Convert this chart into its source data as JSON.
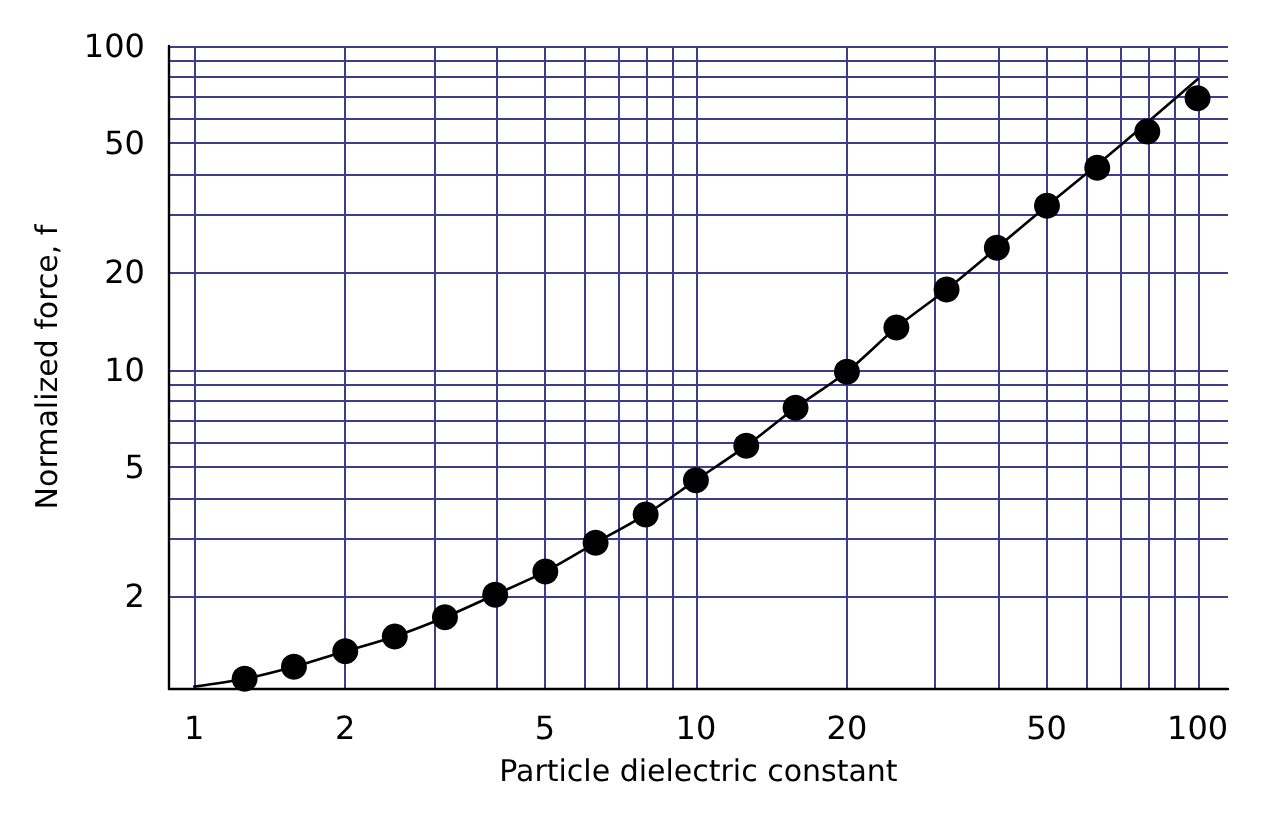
{
  "chart_data": {
    "type": "scatter",
    "xlabel": "Particle dielectric constant",
    "ylabel": "Normalized force, f",
    "log": "xy",
    "grid": true,
    "xlim": [
      0.89,
      115
    ],
    "ylim": [
      1.04,
      100
    ],
    "xticks": [
      1,
      2,
      {
        "value": 3,
        "label": null
      },
      {
        "value": 4,
        "label": null
      },
      5,
      {
        "value": 6,
        "label": null
      },
      {
        "value": 7,
        "label": null
      },
      {
        "value": 8,
        "label": null
      },
      {
        "value": 9,
        "label": null
      },
      10,
      20,
      {
        "value": 30,
        "label": null
      },
      {
        "value": 40,
        "label": null
      },
      50,
      {
        "value": 60,
        "label": null
      },
      {
        "value": 70,
        "label": null
      },
      {
        "value": 80,
        "label": null
      },
      {
        "value": 90,
        "label": null
      },
      100
    ],
    "yticks": [
      2,
      {
        "value": 3,
        "label": null
      },
      {
        "value": 4,
        "label": null
      },
      5,
      {
        "value": 6,
        "label": null
      },
      {
        "value": 7,
        "label": null
      },
      {
        "value": 8,
        "label": null
      },
      {
        "value": 9,
        "label": null
      },
      10,
      20,
      {
        "value": 30,
        "label": null
      },
      {
        "value": 40,
        "label": null
      },
      50,
      {
        "value": 60,
        "label": null
      },
      {
        "value": 70,
        "label": null
      },
      {
        "value": 80,
        "label": null
      },
      {
        "value": 90,
        "label": null
      },
      100
    ],
    "series": [
      {
        "type": "line",
        "color": "#000000",
        "marker": "none",
        "line_style": "solid",
        "x": [
          1,
          1.26,
          1.58,
          2,
          2.51,
          3.16,
          3.98,
          5.01,
          6.31,
          7.94,
          10,
          12.6,
          15.8,
          20,
          25.1,
          31.6,
          39.8,
          50.1,
          63.1,
          79.4,
          100
        ],
        "values": [
          1.05,
          1.11,
          1.21,
          1.35,
          1.5,
          1.72,
          2.02,
          2.38,
          2.92,
          3.57,
          4.56,
          5.82,
          7.63,
          9.86,
          13.5,
          17.7,
          23.8,
          32.1,
          43,
          58,
          79
        ]
      },
      {
        "color": "#000000",
        "marker": "circle",
        "x": [
          1.26,
          1.58,
          2,
          2.51,
          3.16,
          3.98,
          5.01,
          6.31,
          7.94,
          10,
          12.6,
          15.8,
          20,
          25.1,
          31.6,
          39.8,
          50.1,
          63.1,
          79.4,
          100
        ],
        "values": [
          1.11,
          1.21,
          1.35,
          1.5,
          1.72,
          2.02,
          2.38,
          2.92,
          3.57,
          4.56,
          5.82,
          7.63,
          9.86,
          13.5,
          17.7,
          23.8,
          32.1,
          42.1,
          54.4,
          69
        ]
      }
    ]
  }
}
